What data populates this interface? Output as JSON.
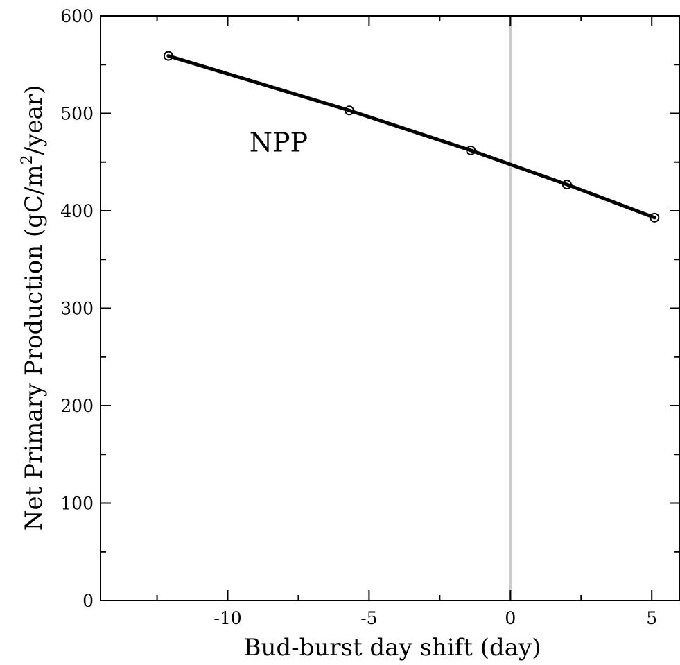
{
  "chart_data": {
    "type": "line",
    "title": "",
    "xlabel": "Bud-burst day shift (day)",
    "ylabel": "Net Primary Production (gC/m",
    "ylabel_sup": "2",
    "ylabel_tail": "/year)",
    "xlim": [
      -14.5,
      6
    ],
    "ylim": [
      0,
      600
    ],
    "x_major_ticks": [
      -10,
      -5,
      0,
      5
    ],
    "x_minor_ticks": [
      -12.5,
      -7.5,
      -2.5,
      2.5
    ],
    "y_major_ticks": [
      0,
      100,
      200,
      300,
      400,
      500,
      600
    ],
    "y_minor_ticks": [
      50,
      150,
      250,
      350,
      450,
      550
    ],
    "x_tick_labels": [
      "-10",
      "-5",
      "0",
      "5"
    ],
    "y_tick_labels": [
      "0",
      "100",
      "200",
      "300",
      "400",
      "500",
      "600"
    ],
    "reference_line_x": 0,
    "annotations": [
      {
        "text": "NPP",
        "x": -8.2,
        "y": 470
      }
    ],
    "series": [
      {
        "marker": "open-circle",
        "color": "#000000",
        "x": [
          -12.1,
          -5.7,
          -1.4,
          2.0,
          5.1
        ],
        "y": [
          559,
          503,
          462,
          427,
          393
        ]
      }
    ],
    "grid": false,
    "legend": "none"
  },
  "colors": {
    "reference_line": "#cccccc",
    "series": "#000000",
    "axes": "#000000"
  }
}
